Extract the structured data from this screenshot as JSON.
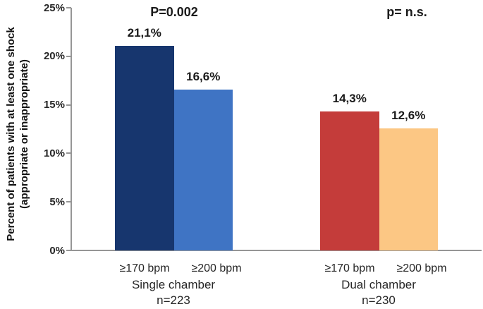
{
  "chart_data": {
    "type": "bar",
    "title": "",
    "ylabel_line1": "Percent of patients with at least one shock",
    "ylabel_line2": "(appropriate or inappropriate)",
    "ylim": [
      0,
      25
    ],
    "y_ticks": [
      "25%",
      "20%",
      "15%",
      "10%",
      "5%",
      "0%"
    ],
    "grid": false,
    "legend_position": "none",
    "background_color": "#ffffff",
    "axis_color": "#969696",
    "groups": [
      {
        "label": "Single chamber",
        "n_label": "n=223",
        "p_label": "P=0.002",
        "bars": [
          {
            "category": "≥170 bpm",
            "value": 21.1,
            "value_label": "21,1%",
            "color": "#17366E"
          },
          {
            "category": "≥200 bpm",
            "value": 16.6,
            "value_label": "16,6%",
            "color": "#3F74C4"
          }
        ]
      },
      {
        "label": "Dual chamber",
        "n_label": "n=230",
        "p_label": "p= n.s.",
        "bars": [
          {
            "category": "≥170 bpm",
            "value": 14.3,
            "value_label": "14,3%",
            "color": "#C43C3A"
          },
          {
            "category": "≥200 bpm",
            "value": 12.6,
            "value_label": "12,6%",
            "color": "#FCC784"
          }
        ]
      }
    ]
  }
}
